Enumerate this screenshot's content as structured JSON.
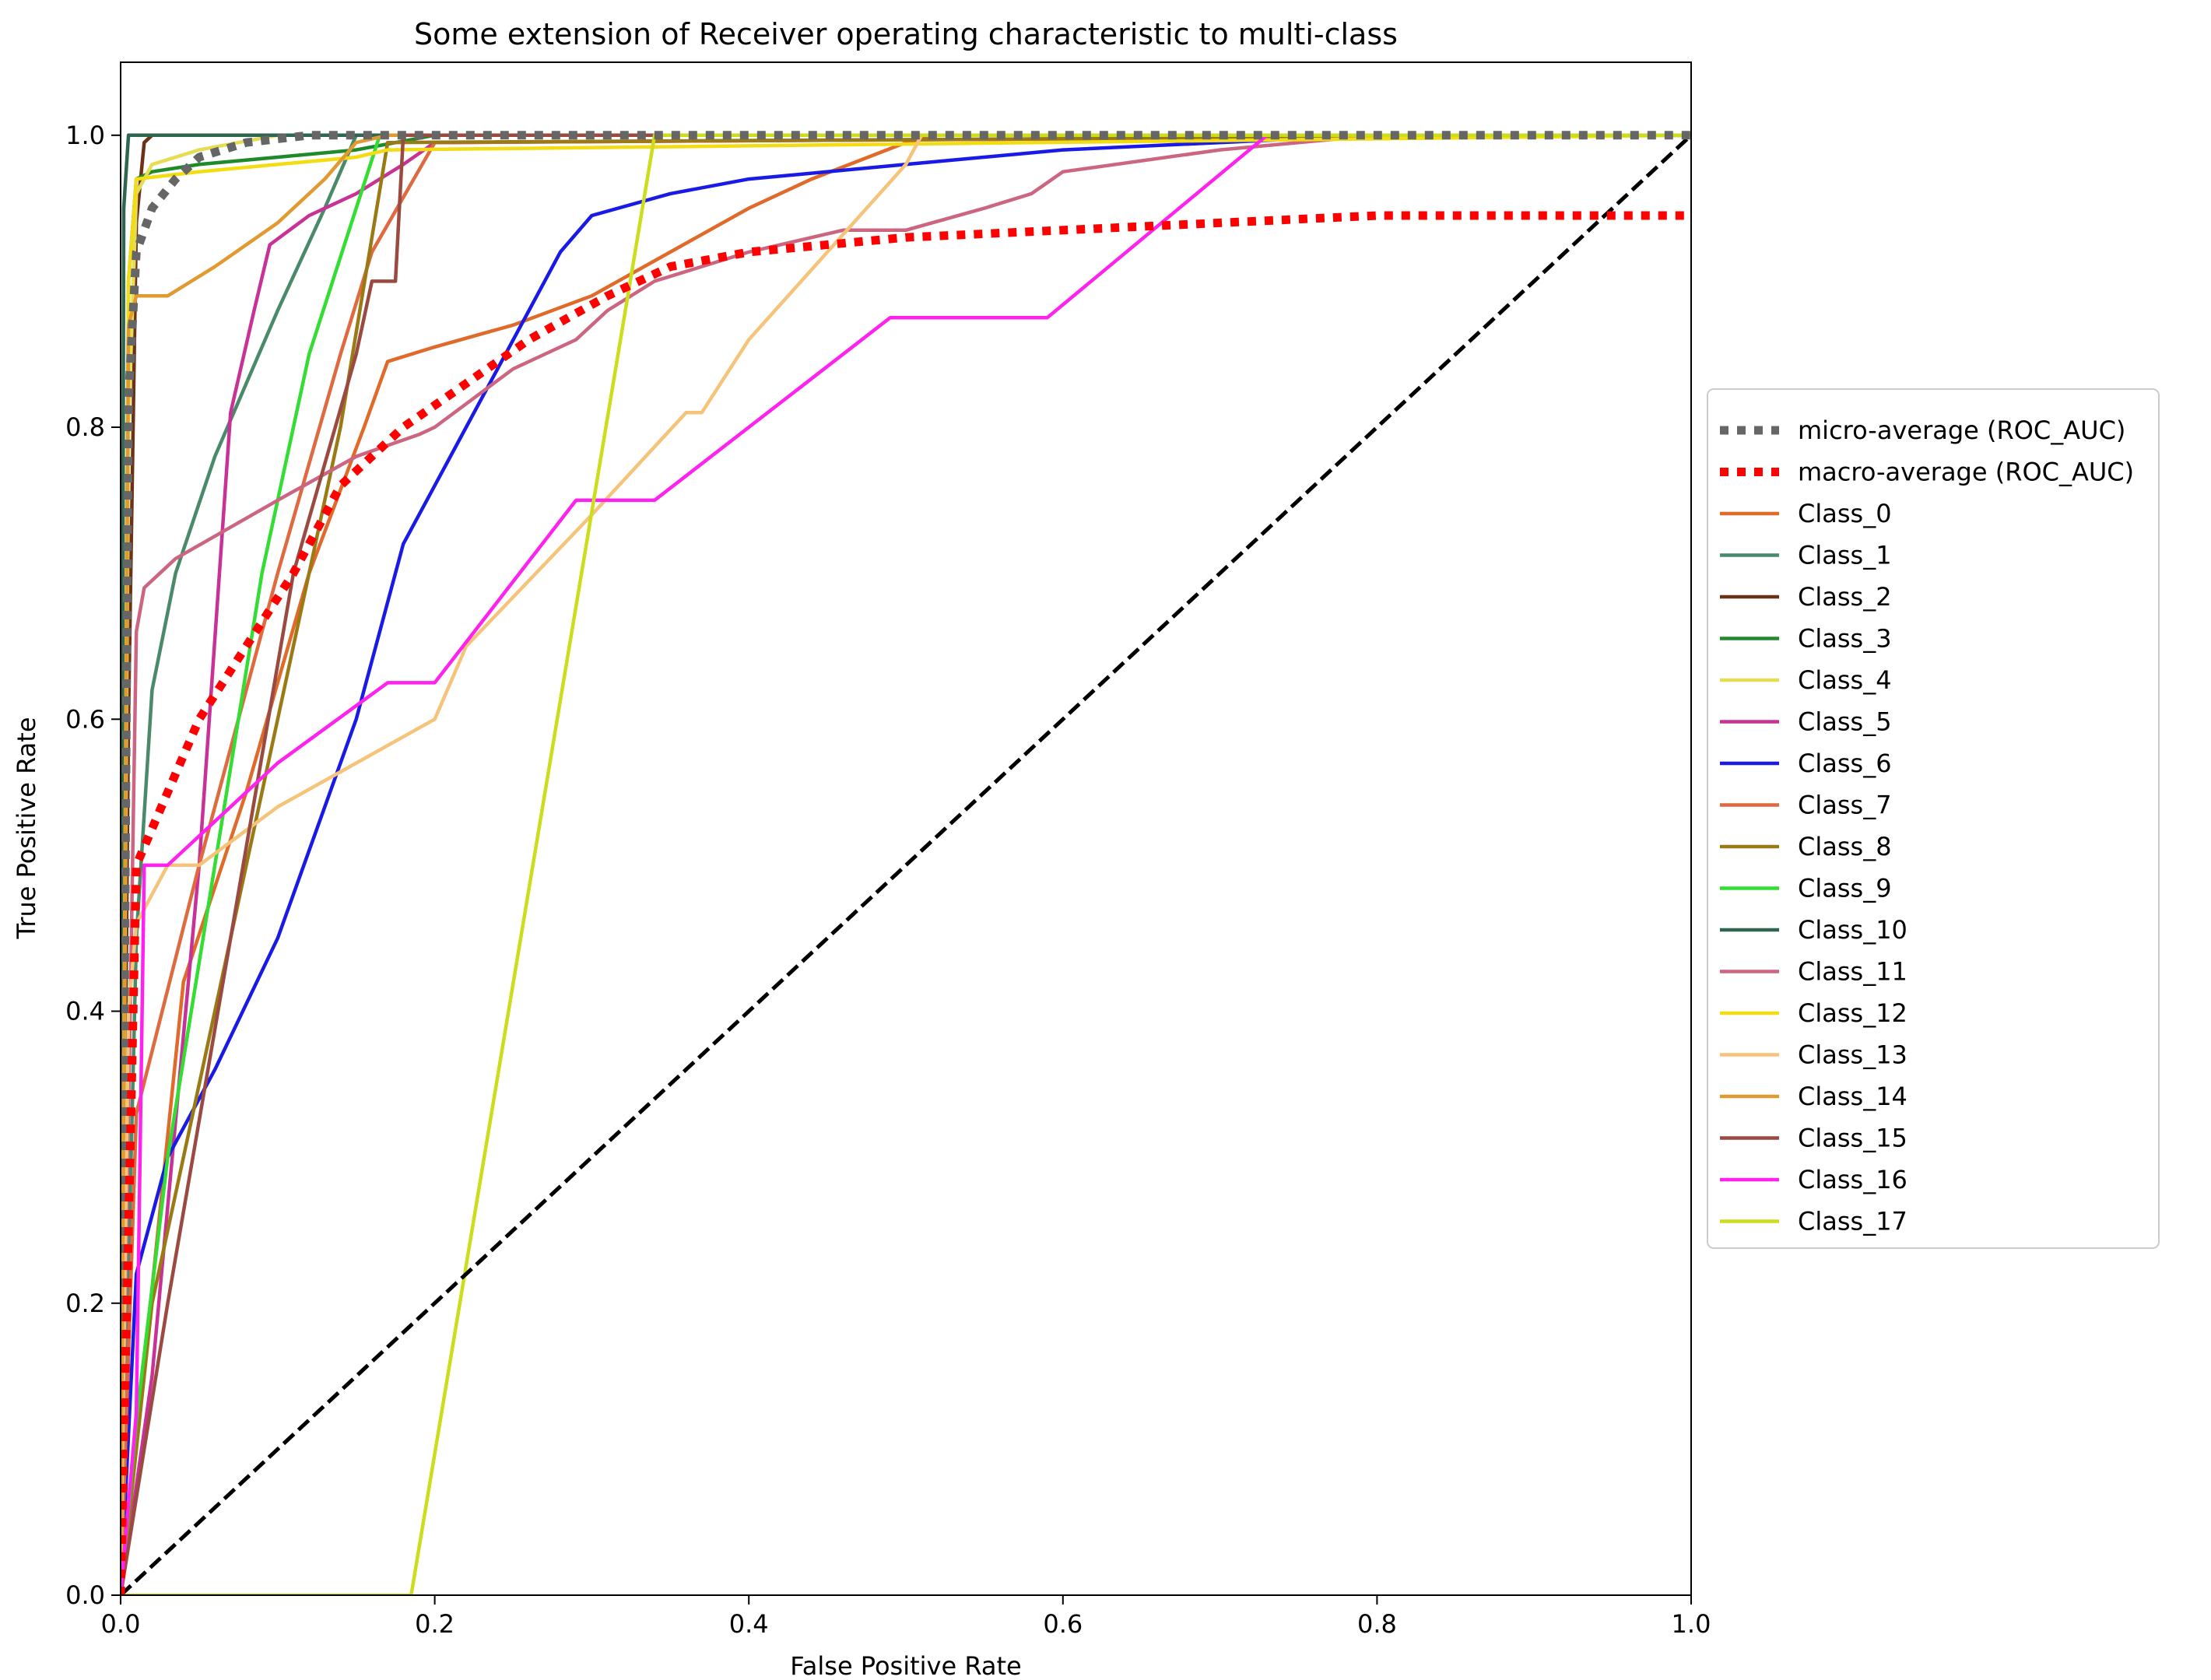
{
  "chart_data": {
    "type": "line",
    "title": "Some extension of Receiver operating characteristic to multi-class",
    "xlabel": "False Positive Rate",
    "ylabel": "True Positive Rate",
    "xlim": [
      0.0,
      1.0
    ],
    "ylim": [
      0.0,
      1.05
    ],
    "xticks": [
      0.0,
      0.2,
      0.4,
      0.6,
      0.8,
      1.0
    ],
    "yticks": [
      0.0,
      0.2,
      0.4,
      0.6,
      0.8,
      1.0
    ],
    "xtick_labels": [
      "0.0",
      "0.2",
      "0.4",
      "0.6",
      "0.8",
      "1.0"
    ],
    "ytick_labels": [
      "0.0",
      "0.2",
      "0.4",
      "0.6",
      "0.8",
      "1.0"
    ],
    "grid": false,
    "legend_position": "outside-right",
    "series": [
      {
        "name": "micro-average (ROC_AUC)",
        "color": "#666666",
        "style": "dotted-thick",
        "x": [
          0.0,
          0.005,
          0.01,
          0.02,
          0.035,
          0.05,
          0.08,
          0.12,
          0.2,
          0.4,
          0.6,
          0.8,
          1.0
        ],
        "y": [
          0.0,
          0.82,
          0.92,
          0.95,
          0.97,
          0.985,
          0.995,
          1.0,
          1.0,
          1.0,
          1.0,
          1.0,
          1.0
        ]
      },
      {
        "name": "macro-average (ROC_AUC)",
        "color": "#ff0000",
        "style": "dotted-thick",
        "x": [
          0.0,
          0.01,
          0.03,
          0.05,
          0.08,
          0.11,
          0.14,
          0.18,
          0.22,
          0.26,
          0.31,
          0.35,
          0.4,
          0.5,
          0.6,
          0.7,
          0.8,
          0.9,
          1.0
        ],
        "y": [
          0.0,
          0.5,
          0.55,
          0.6,
          0.65,
          0.7,
          0.76,
          0.8,
          0.83,
          0.86,
          0.89,
          0.91,
          0.92,
          0.93,
          0.935,
          0.94,
          0.945,
          0.945,
          0.945
        ]
      },
      {
        "name": "Class_0",
        "color": "#e06a2a",
        "style": "solid",
        "x": [
          0.0,
          0.04,
          0.08,
          0.12,
          0.155,
          0.17,
          0.2,
          0.25,
          0.3,
          0.35,
          0.4,
          0.44,
          0.5,
          0.52,
          1.0
        ],
        "y": [
          0.0,
          0.42,
          0.55,
          0.7,
          0.8,
          0.845,
          0.855,
          0.87,
          0.89,
          0.92,
          0.95,
          0.97,
          0.995,
          1.0,
          1.0
        ]
      },
      {
        "name": "Class_1",
        "color": "#4a8a6a",
        "style": "solid",
        "x": [
          0.0,
          0.01,
          0.02,
          0.035,
          0.06,
          0.1,
          0.13,
          0.15,
          1.0
        ],
        "y": [
          0.0,
          0.45,
          0.62,
          0.7,
          0.78,
          0.88,
          0.95,
          1.0,
          1.0
        ]
      },
      {
        "name": "Class_2",
        "color": "#6b3219",
        "style": "solid",
        "x": [
          0.0,
          0.005,
          0.01,
          0.015,
          0.02,
          1.0
        ],
        "y": [
          0.0,
          0.6,
          0.94,
          0.995,
          1.0,
          1.0
        ]
      },
      {
        "name": "Class_3",
        "color": "#1e8a2a",
        "style": "solid",
        "x": [
          0.0,
          0.005,
          0.01,
          0.02,
          0.05,
          0.1,
          0.15,
          0.2,
          1.0
        ],
        "y": [
          0.0,
          0.9,
          0.97,
          0.975,
          0.98,
          0.985,
          0.99,
          1.0,
          1.0
        ]
      },
      {
        "name": "Class_4",
        "color": "#e6dd55",
        "style": "solid",
        "x": [
          0.0,
          0.005,
          0.01,
          0.02,
          0.05,
          0.1,
          1.0
        ],
        "y": [
          0.0,
          0.8,
          0.96,
          0.98,
          0.99,
          1.0,
          1.0
        ]
      },
      {
        "name": "Class_5",
        "color": "#c83296",
        "style": "solid",
        "x": [
          0.0,
          0.02,
          0.05,
          0.07,
          0.085,
          0.095,
          0.12,
          0.15,
          0.18,
          0.2,
          1.0
        ],
        "y": [
          0.0,
          0.15,
          0.5,
          0.81,
          0.88,
          0.925,
          0.945,
          0.96,
          0.98,
          0.995,
          1.0
        ]
      },
      {
        "name": "Class_6",
        "color": "#1a1ae6",
        "style": "solid",
        "x": [
          0.0,
          0.01,
          0.03,
          0.06,
          0.1,
          0.15,
          0.18,
          0.22,
          0.26,
          0.28,
          0.3,
          0.35,
          0.4,
          0.5,
          0.6,
          0.8,
          1.0
        ],
        "y": [
          0.0,
          0.22,
          0.3,
          0.36,
          0.45,
          0.6,
          0.72,
          0.8,
          0.88,
          0.92,
          0.945,
          0.96,
          0.97,
          0.98,
          0.99,
          1.0,
          1.0
        ]
      },
      {
        "name": "Class_7",
        "color": "#e06a40",
        "style": "solid",
        "x": [
          0.0,
          0.01,
          0.05,
          0.1,
          0.14,
          0.16,
          0.2,
          1.0
        ],
        "y": [
          0.0,
          0.33,
          0.5,
          0.7,
          0.85,
          0.92,
          0.995,
          1.0
        ]
      },
      {
        "name": "Class_8",
        "color": "#9a7a14",
        "style": "solid",
        "x": [
          0.0,
          0.02,
          0.06,
          0.1,
          0.14,
          0.17,
          1.0
        ],
        "y": [
          0.0,
          0.2,
          0.4,
          0.6,
          0.8,
          0.995,
          1.0
        ]
      },
      {
        "name": "Class_9",
        "color": "#33dd33",
        "style": "solid",
        "x": [
          0.0,
          0.01,
          0.03,
          0.06,
          0.09,
          0.12,
          0.15,
          0.165,
          1.0
        ],
        "y": [
          0.0,
          0.12,
          0.3,
          0.5,
          0.7,
          0.85,
          0.95,
          1.0,
          1.0
        ]
      },
      {
        "name": "Class_10",
        "color": "#2e6650",
        "style": "solid",
        "x": [
          0.0,
          0.002,
          0.005,
          1.0
        ],
        "y": [
          0.0,
          0.95,
          1.0,
          1.0
        ]
      },
      {
        "name": "Class_11",
        "color": "#cc6680",
        "style": "solid",
        "x": [
          0.0,
          0.01,
          0.015,
          0.025,
          0.035,
          0.1,
          0.15,
          0.19,
          0.2,
          0.25,
          0.29,
          0.31,
          0.34,
          0.4,
          0.46,
          0.5,
          0.55,
          0.58,
          0.6,
          0.7,
          0.8,
          1.0
        ],
        "y": [
          0.0,
          0.66,
          0.69,
          0.7,
          0.71,
          0.75,
          0.78,
          0.795,
          0.8,
          0.84,
          0.86,
          0.88,
          0.9,
          0.92,
          0.935,
          0.935,
          0.95,
          0.96,
          0.975,
          0.99,
          1.0,
          1.0
        ]
      },
      {
        "name": "Class_12",
        "color": "#f2dd15",
        "style": "solid",
        "x": [
          0.0,
          0.005,
          0.01,
          0.05,
          0.1,
          0.15,
          0.17,
          1.0
        ],
        "y": [
          0.0,
          0.9,
          0.97,
          0.975,
          0.98,
          0.985,
          0.99,
          1.0
        ]
      },
      {
        "name": "Class_13",
        "color": "#f5c47a",
        "style": "solid",
        "x": [
          0.0,
          0.005,
          0.01,
          0.03,
          0.05,
          0.1,
          0.15,
          0.2,
          0.22,
          0.3,
          0.36,
          0.37,
          0.4,
          0.45,
          0.5,
          0.51,
          1.0
        ],
        "y": [
          0.0,
          0.4,
          0.46,
          0.5,
          0.5,
          0.54,
          0.57,
          0.6,
          0.65,
          0.74,
          0.81,
          0.81,
          0.86,
          0.92,
          0.98,
          1.0,
          1.0
        ]
      },
      {
        "name": "Class_14",
        "color": "#e09a30",
        "style": "solid",
        "x": [
          0.0,
          0.005,
          0.01,
          0.03,
          0.06,
          0.1,
          0.13,
          0.15,
          0.17,
          1.0
        ],
        "y": [
          0.0,
          0.87,
          0.89,
          0.89,
          0.91,
          0.94,
          0.97,
          0.995,
          1.0,
          1.0
        ]
      },
      {
        "name": "Class_15",
        "color": "#9a4a40",
        "style": "solid",
        "x": [
          0.0,
          0.03,
          0.07,
          0.11,
          0.15,
          0.16,
          0.175,
          0.18,
          1.0
        ],
        "y": [
          0.0,
          0.2,
          0.45,
          0.7,
          0.85,
          0.9,
          0.9,
          1.0,
          1.0
        ]
      },
      {
        "name": "Class_16",
        "color": "#ff22ee",
        "style": "solid",
        "x": [
          0.0,
          0.01,
          0.015,
          0.03,
          0.1,
          0.17,
          0.2,
          0.29,
          0.34,
          0.49,
          0.59,
          0.73,
          0.8,
          1.0
        ],
        "y": [
          0.0,
          0.125,
          0.5,
          0.5,
          0.57,
          0.625,
          0.625,
          0.75,
          0.75,
          0.875,
          0.875,
          1.0,
          1.0,
          1.0
        ]
      },
      {
        "name": "Class_17",
        "color": "#ccdd1a",
        "style": "solid",
        "x": [
          0.0,
          0.185,
          0.34,
          1.0
        ],
        "y": [
          0.0,
          0.0,
          1.0,
          1.0
        ]
      },
      {
        "name": "",
        "color": "#000000",
        "style": "dashed",
        "x": [
          0.0,
          1.0
        ],
        "y": [
          0.0,
          1.0
        ]
      }
    ]
  }
}
